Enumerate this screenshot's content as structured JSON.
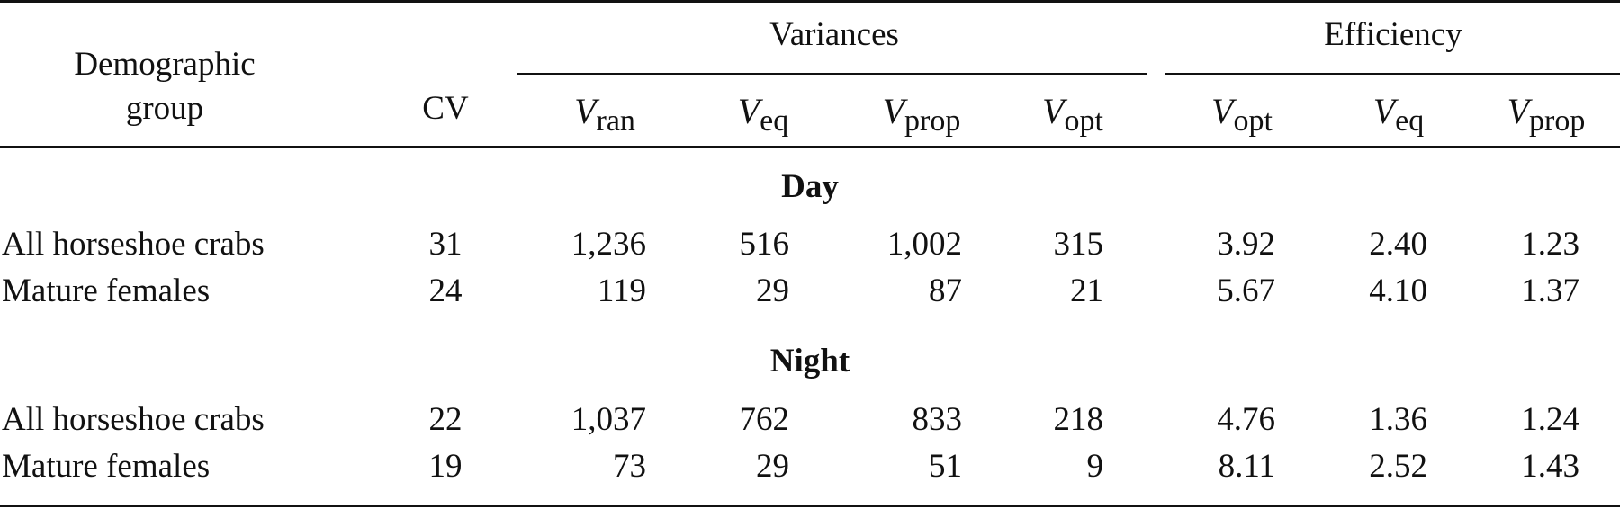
{
  "header": {
    "demographic_line1": "Demographic",
    "demographic_line2": "group",
    "cv": "CV",
    "variances_group": "Variances",
    "efficiency_group": "Efficiency",
    "variance_columns": [
      {
        "symbol": "V",
        "subscript": "ran"
      },
      {
        "symbol": "V",
        "subscript": "eq"
      },
      {
        "symbol": "V",
        "subscript": "prop"
      },
      {
        "symbol": "V",
        "subscript": "opt"
      }
    ],
    "efficiency_columns": [
      {
        "symbol": "V",
        "subscript": "opt"
      },
      {
        "symbol": "V",
        "subscript": "eq"
      },
      {
        "symbol": "V",
        "subscript": "prop"
      }
    ]
  },
  "sections": [
    {
      "title": "Day",
      "rows": [
        {
          "group": "All horseshoe crabs",
          "values": [
            "31",
            "1,236",
            "516",
            "1,002",
            "315",
            "3.92",
            "2.40",
            "1.23"
          ]
        },
        {
          "group": "Mature females",
          "values": [
            "24",
            "119",
            "29",
            "87",
            "21",
            "5.67",
            "4.10",
            "1.37"
          ]
        }
      ]
    },
    {
      "title": "Night",
      "rows": [
        {
          "group": "All horseshoe crabs",
          "values": [
            "22",
            "1,037",
            "762",
            "833",
            "218",
            "4.76",
            "1.36",
            "1.24"
          ]
        },
        {
          "group": "Mature females",
          "values": [
            "19",
            "73",
            "29",
            "51",
            "9",
            "8.11",
            "2.52",
            "1.43"
          ]
        }
      ]
    }
  ]
}
